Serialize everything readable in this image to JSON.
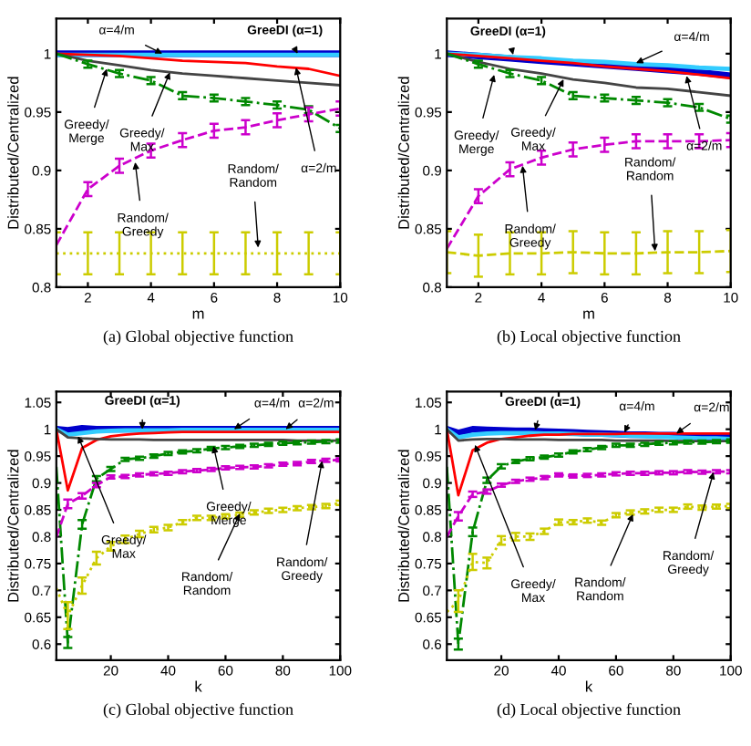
{
  "chart_data": [
    {
      "type": "line",
      "xlabel": "m",
      "ylabel": "Distributed/Centralized",
      "x": [
        1,
        2,
        3,
        4,
        5,
        6,
        7,
        8,
        9,
        10
      ],
      "xlim": [
        1,
        10
      ],
      "xticks": [
        2,
        4,
        6,
        8,
        10
      ],
      "ylim": [
        0.8,
        1.03
      ],
      "yticks": [
        0.8,
        0.85,
        0.9,
        0.95,
        1
      ],
      "series": [
        {
          "color": "#0000cc",
          "line_style": "solid",
          "values": [
            1,
            1,
            1,
            1,
            1,
            1,
            1,
            1,
            1,
            1
          ]
        },
        {
          "color": "#33ccff",
          "line_style": "solid",
          "values": [
            0.999,
            0.999,
            0.999,
            0.999,
            0.999,
            0.999,
            0.999,
            0.999,
            0.999,
            0.999
          ]
        },
        {
          "color": "#ff0000",
          "line_style": "solid",
          "values": [
            1,
            0.999,
            0.998,
            0.996,
            0.994,
            0.993,
            0.992,
            0.989,
            0.987,
            0.981
          ]
        },
        {
          "color": "#444444",
          "line_style": "solid",
          "values": [
            1,
            0.994,
            0.99,
            0.986,
            0.983,
            0.981,
            0.979,
            0.977,
            0.975,
            0.973
          ]
        },
        {
          "color": "#008800",
          "line_style": "dashdot",
          "values": [
            1,
            0.991,
            0.983,
            0.977,
            0.964,
            0.962,
            0.959,
            0.956,
            0.952,
            0.936
          ],
          "errors": [
            null,
            0.003,
            0.003,
            0.003,
            0.003,
            0.003,
            0.003,
            0.003,
            0.003,
            0.003
          ]
        },
        {
          "color": "#cc00cc",
          "line_style": "dashed",
          "values": [
            0.836,
            0.884,
            0.904,
            0.917,
            0.926,
            0.934,
            0.937,
            0.943,
            0.948,
            0.953
          ],
          "errors": [
            null,
            0.006,
            0.006,
            0.006,
            0.006,
            0.006,
            0.006,
            0.006,
            0.006,
            0.006
          ]
        },
        {
          "color": "#cccc00",
          "line_style": "dotted",
          "values": [
            0.829,
            0.829,
            0.829,
            0.829,
            0.829,
            0.829,
            0.829,
            0.829,
            0.829,
            0.829
          ],
          "errors": [
            0.018,
            0.018,
            0.018,
            0.018,
            0.018,
            0.018,
            0.018,
            0.018,
            0.018,
            0.018
          ]
        }
      ],
      "annotations": [
        {
          "text": "GreeDI (α=1)",
          "x": 8.65,
          "y": 1.0
        },
        {
          "text": "α=4/m",
          "x": 4.36,
          "y": 1.0
        },
        {
          "text": "α=2/m",
          "x": 8.6,
          "y": 0.988
        },
        {
          "text": "Greedy/\nMerge",
          "x": 2.6,
          "y": 0.987
        },
        {
          "text": "Greedy/\nMax",
          "x": 4.6,
          "y": 0.984
        },
        {
          "text": "Random/\nGreedy",
          "x": 3.5,
          "y": 0.907
        },
        {
          "text": "Random/\nRandom",
          "x": 7.4,
          "y": 0.834
        },
        "(a) Global objective function"
      ]
    },
    {
      "type": "line",
      "xlabel": "m",
      "ylabel": "Distributed/Centralized",
      "x": [
        1,
        2,
        3,
        4,
        5,
        6,
        7,
        8,
        9,
        10
      ],
      "xlim": [
        1,
        10
      ],
      "xticks": [
        2,
        4,
        6,
        8,
        10
      ],
      "ylim": [
        0.8,
        1.03
      ],
      "yticks": [
        0.8,
        0.85,
        0.9,
        0.95,
        1
      ],
      "series": [
        {
          "color": "#0000cc",
          "line_style": "solid",
          "values": [
            1,
            0.998,
            0.996,
            0.994,
            0.992,
            0.99,
            0.988,
            0.986,
            0.984,
            0.981
          ]
        },
        {
          "color": "#33ccff",
          "line_style": "solid",
          "values": [
            1,
            0.999,
            0.997,
            0.996,
            0.994,
            0.993,
            0.991,
            0.99,
            0.988,
            0.987
          ]
        },
        {
          "color": "#ff0000",
          "line_style": "solid",
          "values": [
            1,
            0.998,
            0.996,
            0.994,
            0.992,
            0.989,
            0.987,
            0.985,
            0.982,
            0.979
          ]
        },
        {
          "color": "#444444",
          "line_style": "solid",
          "values": [
            1,
            0.993,
            0.987,
            0.983,
            0.978,
            0.975,
            0.971,
            0.97,
            0.967,
            0.964
          ]
        },
        {
          "color": "#008800",
          "line_style": "dashdot",
          "values": [
            1,
            0.991,
            0.983,
            0.977,
            0.964,
            0.962,
            0.96,
            0.958,
            0.954,
            0.944
          ],
          "errors": [
            null,
            0.003,
            0.003,
            0.003,
            0.003,
            0.003,
            0.003,
            0.003,
            0.003,
            0.003
          ]
        },
        {
          "color": "#cc00cc",
          "line_style": "dashed",
          "values": [
            0.833,
            0.878,
            0.901,
            0.911,
            0.918,
            0.922,
            0.925,
            0.925,
            0.925,
            0.926
          ],
          "errors": [
            null,
            0.006,
            0.006,
            0.006,
            0.006,
            0.006,
            0.006,
            0.006,
            0.006,
            0.006
          ]
        },
        {
          "color": "#cccc00",
          "line_style": "dashed",
          "values": [
            0.83,
            0.827,
            0.829,
            0.829,
            0.83,
            0.829,
            0.829,
            0.83,
            0.83,
            0.831
          ],
          "errors": [
            0.018,
            0.018,
            0.018,
            0.018,
            0.018,
            0.018,
            0.018,
            0.018,
            0.018,
            0.018
          ]
        }
      ],
      "annotations": [
        {
          "text": "GreeDI (α=1)",
          "x": 3.1,
          "y": 0.999
        },
        {
          "text": "α=4/m",
          "x": 7.0,
          "y": 0.992
        },
        {
          "text": "α=2/m",
          "x": 8.6,
          "y": 0.981
        },
        {
          "text": "Greedy/\nMerge",
          "x": 2.5,
          "y": 0.982
        },
        {
          "text": "Greedy/\nMax",
          "x": 4.7,
          "y": 0.978
        },
        {
          "text": "Random/\nGreedy",
          "x": 3.4,
          "y": 0.904
        },
        {
          "text": "Random/\nRandom",
          "x": 7.6,
          "y": 0.831
        },
        "(b) Local objective function"
      ]
    },
    {
      "type": "line",
      "xlabel": "k",
      "ylabel": "Distributed/Centralized",
      "x": [
        1,
        5,
        10,
        15,
        20,
        25,
        30,
        35,
        40,
        45,
        50,
        55,
        60,
        65,
        70,
        75,
        80,
        85,
        90,
        95,
        100
      ],
      "xlim": [
        1,
        100
      ],
      "xticks": [
        20,
        40,
        60,
        80,
        100
      ],
      "ylim": [
        0.57,
        1.07
      ],
      "yticks": [
        0.6,
        0.65,
        0.7,
        0.75,
        0.8,
        0.85,
        0.9,
        0.95,
        1,
        1.05
      ],
      "series": [
        {
          "color": "#0000cc",
          "line_style": "solid",
          "values": [
            1,
            0.998,
            1.002,
            1,
            1,
            1,
            1,
            1,
            1,
            1,
            1,
            1,
            1,
            1,
            1,
            1,
            1,
            1,
            1,
            1,
            1
          ]
        },
        {
          "color": "#33ccff",
          "line_style": "solid",
          "values": [
            1,
            0.99,
            0.993,
            0.996,
            0.997,
            0.998,
            0.998,
            0.998,
            0.998,
            0.999,
            0.999,
            0.999,
            0.999,
            0.999,
            0.999,
            0.999,
            0.999,
            0.999,
            0.999,
            0.999,
            0.999
          ]
        },
        {
          "color": "#ff0000",
          "line_style": "solid",
          "values": [
            1,
            0.886,
            0.965,
            0.98,
            0.987,
            0.99,
            0.992,
            0.993,
            0.994,
            0.995,
            0.995,
            0.995,
            0.995,
            0.995,
            0.995,
            0.995,
            0.995,
            0.995,
            0.995,
            0.995,
            0.995
          ]
        },
        {
          "color": "#444444",
          "line_style": "solid",
          "values": [
            1,
            0.985,
            0.983,
            0.982,
            0.981,
            0.981,
            0.981,
            0.98,
            0.98,
            0.98,
            0.98,
            0.98,
            0.98,
            0.98,
            0.98,
            0.98,
            0.98,
            0.979,
            0.979,
            0.979,
            0.979
          ]
        },
        {
          "color": "#008800",
          "line_style": "dashdot",
          "values": [
            0.93,
            0.603,
            0.823,
            0.908,
            0.926,
            0.944,
            0.946,
            0.95,
            0.955,
            0.958,
            0.96,
            0.964,
            0.966,
            0.968,
            0.97,
            0.972,
            0.974,
            0.975,
            0.976,
            0.977,
            0.978
          ],
          "errors": [
            null,
            0.01,
            0.008,
            0.005,
            0.004,
            0.003,
            0.003,
            0.003,
            0.003,
            0.003,
            0.003,
            0.003,
            0.003,
            0.003,
            0.003,
            0.003,
            0.003,
            0.003,
            0.003,
            0.003,
            0.003
          ]
        },
        {
          "color": "#cc00cc",
          "line_style": "dashed",
          "values": [
            0.799,
            0.861,
            0.876,
            0.896,
            0.911,
            0.912,
            0.915,
            0.917,
            0.918,
            0.921,
            0.923,
            0.925,
            0.928,
            0.929,
            0.93,
            0.932,
            0.935,
            0.936,
            0.94,
            0.942,
            0.943
          ],
          "errors": [
            null,
            0.008,
            0.005,
            0.004,
            0.003,
            0.003,
            0.003,
            0.003,
            0.003,
            0.003,
            0.003,
            0.003,
            0.003,
            0.003,
            0.003,
            0.003,
            0.003,
            0.003,
            0.003,
            0.003,
            0.003
          ]
        },
        {
          "color": "#cccc00",
          "line_style": "dotted",
          "values": [
            0.704,
            0.653,
            0.709,
            0.76,
            0.782,
            0.795,
            0.805,
            0.813,
            0.817,
            0.827,
            0.835,
            0.835,
            0.838,
            0.841,
            0.845,
            0.848,
            0.85,
            0.853,
            0.855,
            0.857,
            0.863
          ],
          "errors": [
            null,
            0.025,
            0.015,
            0.012,
            0.008,
            0.007,
            0.006,
            0.005,
            0.005,
            0.004,
            0.004,
            0.004,
            0.004,
            0.004,
            0.004,
            0.004,
            0.004,
            0.004,
            0.004,
            0.004,
            0.004
          ]
        }
      ],
      "annotations": [
        {
          "text": "GreeDI (α=1)",
          "x": 31,
          "y": 1.0
        },
        {
          "text": "α=4/m",
          "x": 63,
          "y": 1.0
        },
        {
          "text": "α=2/m",
          "x": 81,
          "y": 1.0
        },
        {
          "text": "Greedy/\nMax",
          "x": 8.6,
          "y": 0.987
        },
        {
          "text": "Greedy/\nMerge",
          "x": 55.8,
          "y": 0.969
        },
        {
          "text": "Random/\nGreedy",
          "x": 93.7,
          "y": 0.941
        },
        {
          "text": "Random/\nRandom",
          "x": 65,
          "y": 0.843
        },
        "(c) Global objective function"
      ]
    },
    {
      "type": "line",
      "xlabel": "k",
      "ylabel": "Distributed/Centralized",
      "x": [
        1,
        5,
        10,
        15,
        20,
        25,
        30,
        35,
        40,
        45,
        50,
        55,
        60,
        65,
        70,
        75,
        80,
        85,
        90,
        95,
        100
      ],
      "xlim": [
        1,
        100
      ],
      "xticks": [
        20,
        40,
        60,
        80,
        100
      ],
      "ylim": [
        0.57,
        1.07
      ],
      "yticks": [
        0.6,
        0.65,
        0.7,
        0.75,
        0.8,
        0.85,
        0.9,
        0.95,
        1,
        1.05
      ],
      "series": [
        {
          "color": "#0000cc",
          "line_style": "solid",
          "values": [
            1,
            0.993,
            1,
            0.999,
            0.998,
            0.997,
            0.997,
            0.996,
            0.995,
            0.994,
            0.993,
            0.992,
            0.991,
            0.99,
            0.99,
            0.989,
            0.989,
            0.988,
            0.988,
            0.987,
            0.987
          ]
        },
        {
          "color": "#33ccff",
          "line_style": "solid",
          "values": [
            1,
            0.985,
            0.99,
            0.992,
            0.993,
            0.993,
            0.993,
            0.992,
            0.992,
            0.991,
            0.99,
            0.99,
            0.989,
            0.988,
            0.987,
            0.986,
            0.985,
            0.984,
            0.983,
            0.983,
            0.982
          ]
        },
        {
          "color": "#ff0000",
          "line_style": "solid",
          "values": [
            1,
            0.877,
            0.961,
            0.975,
            0.982,
            0.985,
            0.988,
            0.99,
            0.99,
            0.991,
            0.991,
            0.991,
            0.991,
            0.992,
            0.992,
            0.992,
            0.992,
            0.992,
            0.992,
            0.992,
            0.992
          ]
        },
        {
          "color": "#444444",
          "line_style": "solid",
          "values": [
            1,
            0.979,
            0.981,
            0.982,
            0.982,
            0.981,
            0.981,
            0.981,
            0.98,
            0.98,
            0.98,
            0.98,
            0.979,
            0.979,
            0.979,
            0.979,
            0.978,
            0.978,
            0.978,
            0.978,
            0.978
          ]
        },
        {
          "color": "#008800",
          "line_style": "dashdot",
          "values": [
            0.93,
            0.6,
            0.809,
            0.905,
            0.931,
            0.94,
            0.945,
            0.948,
            0.952,
            0.958,
            0.962,
            0.966,
            0.97,
            0.97,
            0.972,
            0.974,
            0.975,
            0.976,
            0.976,
            0.977,
            0.978
          ],
          "errors": [
            null,
            0.01,
            0.008,
            0.005,
            0.004,
            0.003,
            0.003,
            0.003,
            0.003,
            0.003,
            0.003,
            0.003,
            0.003,
            0.003,
            0.003,
            0.003,
            0.003,
            0.003,
            0.003,
            0.003,
            0.003
          ]
        },
        {
          "color": "#cc00cc",
          "line_style": "dashed",
          "values": [
            0.8,
            0.838,
            0.879,
            0.884,
            0.896,
            0.903,
            0.907,
            0.91,
            0.915,
            0.913,
            0.914,
            0.915,
            0.917,
            0.918,
            0.918,
            0.919,
            0.919,
            0.921,
            0.92,
            0.921,
            0.921
          ],
          "errors": [
            null,
            0.008,
            0.005,
            0.004,
            0.003,
            0.003,
            0.003,
            0.003,
            0.003,
            0.003,
            0.003,
            0.003,
            0.003,
            0.003,
            0.003,
            0.003,
            0.003,
            0.003,
            0.003,
            0.003,
            0.003
          ]
        },
        {
          "color": "#cccc00",
          "line_style": "dotted",
          "values": [
            0.66,
            0.68,
            0.753,
            0.751,
            0.793,
            0.8,
            0.8,
            0.81,
            0.827,
            0.827,
            0.83,
            0.826,
            0.84,
            0.845,
            0.847,
            0.85,
            0.85,
            0.856,
            0.854,
            0.856,
            0.857
          ],
          "errors": [
            null,
            0.02,
            0.015,
            0.01,
            0.008,
            0.007,
            0.006,
            0.005,
            0.005,
            0.004,
            0.004,
            0.004,
            0.004,
            0.004,
            0.004,
            0.004,
            0.004,
            0.004,
            0.004,
            0.004,
            0.004
          ]
        }
      ],
      "annotations": [
        {
          "text": "GreeDI (α=1)",
          "x": 31.8,
          "y": 0.998
        },
        {
          "text": "α=4/m",
          "x": 62.9,
          "y": 0.994
        },
        {
          "text": "α=2/m",
          "x": 81,
          "y": 0.992
        },
        {
          "text": "Greedy/\nMax",
          "x": 10.8,
          "y": 0.971
        },
        {
          "text": "Random/\nGreedy",
          "x": 94,
          "y": 0.92
        },
        {
          "text": "Random/\nRandom",
          "x": 65.9,
          "y": 0.842
        },
        "(d) Local objective function"
      ]
    }
  ]
}
